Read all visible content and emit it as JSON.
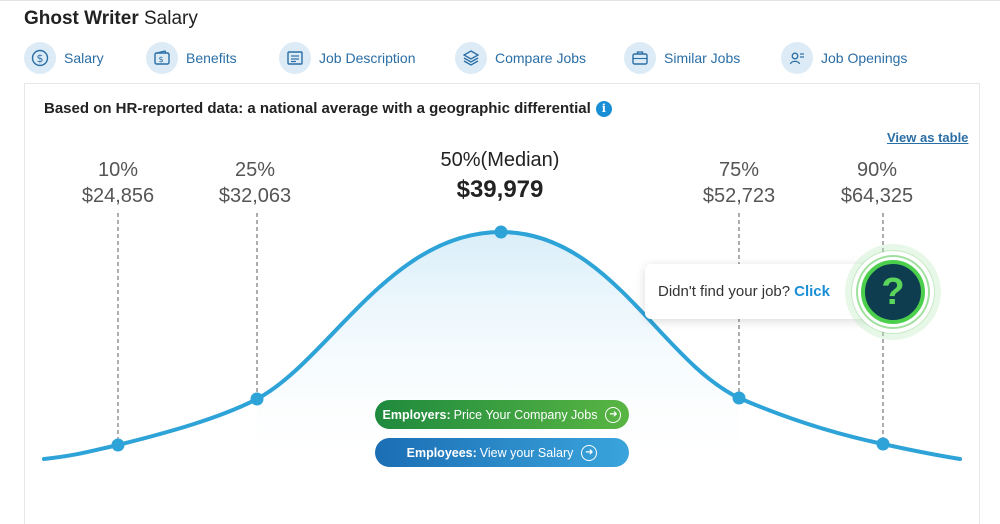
{
  "page": {
    "title_bold": "Ghost Writer",
    "title_rest": " Salary"
  },
  "nav": [
    {
      "label": "Salary",
      "icon": "dollar-circle-icon"
    },
    {
      "label": "Benefits",
      "icon": "wallet-icon"
    },
    {
      "label": "Job Description",
      "icon": "document-icon"
    },
    {
      "label": "Compare Jobs",
      "icon": "layers-icon"
    },
    {
      "label": "Similar Jobs",
      "icon": "briefcase-icon"
    },
    {
      "label": "Job Openings",
      "icon": "person-card-icon"
    }
  ],
  "card": {
    "heading": "Based on HR-reported data: a national average with a geographic differential",
    "info_glyph": "i",
    "view_table": "View as table"
  },
  "percentiles": [
    {
      "label": "10%",
      "value": "$24,856"
    },
    {
      "label": "25%",
      "value": "$32,063"
    },
    {
      "label": "50%(Median)",
      "value": "$39,979"
    },
    {
      "label": "75%",
      "value": "$52,723"
    },
    {
      "label": "90%",
      "value": "$64,325"
    }
  ],
  "buttons": {
    "employers_bold": "Employers:",
    "employers_text": "Price Your Company Jobs",
    "employees_bold": "Employees:",
    "employees_text": "View your Salary"
  },
  "help": {
    "text": "Didn't find your job?",
    "link": "Click",
    "glyph": "?"
  },
  "colors": {
    "curve": "#2ea3d8",
    "link": "#2a6ea6",
    "employers_btn": "#2f9a3f",
    "employees_btn": "#1b78bd",
    "help_ring": "#4ccf4c"
  }
}
